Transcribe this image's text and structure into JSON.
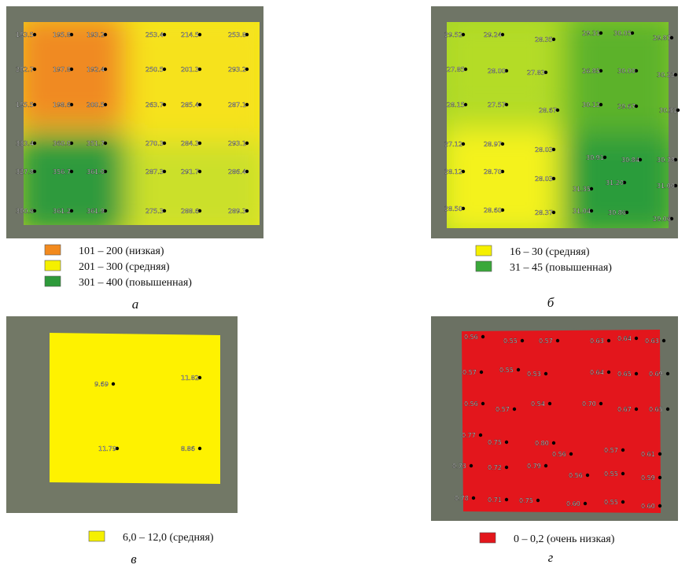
{
  "panels": [
    {
      "letter": "а",
      "points": [
        "193.5",
        "195.8",
        "193.2",
        "253.4",
        "214.5",
        "253.8",
        "202.7",
        "197.8",
        "192.4",
        "250.5",
        "201.3",
        "293.2",
        "195.5",
        "198.6",
        "200.5",
        "263.7",
        "285.4",
        "287.1",
        "333.4",
        "360.0",
        "351.7",
        "270.3",
        "284.3",
        "293.1",
        "327.8",
        "356.7",
        "361.0",
        "287.3",
        "291.7",
        "286.4",
        "300.6",
        "361.2",
        "361.9",
        "275.3",
        "288.6",
        "289.3"
      ],
      "legend": [
        {
          "label": "101 – 200 (низкая)",
          "color": "#f28a1e"
        },
        {
          "label": "201 – 300 (средняя)",
          "color": "#f5f000"
        },
        {
          "label": "301 – 400 (повышенная)",
          "color": "#2e9a3a"
        }
      ]
    },
    {
      "letter": "б",
      "points": [
        "29.52",
        "29.24",
        "28.35",
        "29.31",
        "30.05",
        "29.87",
        "27.85",
        "28.00",
        "27.83",
        "26.85",
        "30.00",
        "30.22",
        "28.15",
        "27.57",
        "28.67",
        "30.12",
        "29.67",
        "30.31",
        "27.12",
        "28.97",
        "28.03",
        "30.91",
        "30.84",
        "30.78",
        "28.12",
        "28.70",
        "28.03",
        "31.35",
        "31.20",
        "31.00",
        "28.50",
        "28.60",
        "28.37",
        "31.04",
        "30.86",
        "29.06"
      ],
      "legend": [
        {
          "label": "16 – 30 (средняя)",
          "color": "#f5f000"
        },
        {
          "label": "31 – 45 (повышенная)",
          "color": "#3aa83a"
        }
      ]
    },
    {
      "letter": "в",
      "points": [
        "9.69",
        "11.82",
        "11.79",
        "8.86"
      ],
      "legend": [
        {
          "label": "6,0 – 12,0 (средняя)",
          "color": "#f5f000"
        }
      ]
    },
    {
      "letter": "г",
      "points": [
        "0.56",
        "0.55",
        "0.57",
        "0.63",
        "0.64",
        "0.63",
        "0.57",
        "0.55",
        "0.53",
        "0.64",
        "0.65",
        "0.69",
        "0.56",
        "0.57",
        "0.54",
        "0.70",
        "0.67",
        "0.65",
        "0.77",
        "0.75",
        "0.80",
        "0.56",
        "0.57",
        "0.61",
        "0.73",
        "0.72",
        "0.79",
        "0.56",
        "0.55",
        "0.59",
        "0.78",
        "0.71",
        "0.75",
        "0.60",
        "0.55",
        "0.60"
      ],
      "legend": [
        {
          "label": "0 – 0,2 (очень низкая)",
          "color": "#e3161c"
        }
      ]
    }
  ]
}
